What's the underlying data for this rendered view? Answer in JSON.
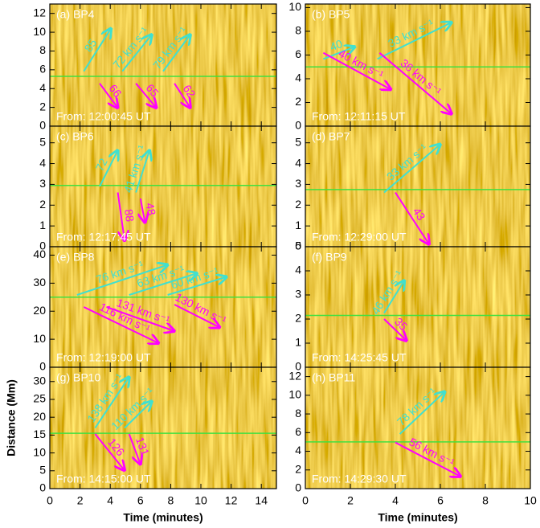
{
  "chart_data": [
    {
      "type": "time_distance",
      "title": "(a) BP4",
      "annotation": "From: 12:00:45 UT",
      "xlim": [
        0,
        15
      ],
      "xticks": [
        0,
        2,
        4,
        6,
        8,
        10,
        12,
        14
      ],
      "ylim": [
        0,
        13
      ],
      "yticks": [
        0,
        2,
        4,
        6,
        8,
        10,
        12
      ],
      "hline": 5.3,
      "hline_color": "#40e040",
      "velocities": [
        {
          "label": "85",
          "color": "#40e0d0"
        },
        {
          "label": "72 km s⁻¹",
          "color": "#40e0d0"
        },
        {
          "label": "79 km s⁻¹",
          "color": "#40e0d0"
        },
        {
          "label": "66",
          "color": "#ff00ff"
        },
        {
          "label": "65",
          "color": "#ff00ff"
        },
        {
          "label": "62",
          "color": "#ff00ff"
        }
      ]
    },
    {
      "type": "time_distance",
      "title": "(b) BP5",
      "annotation": "From: 12:11:15 UT",
      "xlim": [
        0,
        10
      ],
      "xticks": [
        0,
        2,
        4,
        6,
        8,
        10
      ],
      "ylim": [
        0,
        10.3
      ],
      "yticks": [
        0,
        2,
        4,
        6,
        8,
        10
      ],
      "hline": 5.0,
      "hline_color": "#40e040",
      "velocities": [
        {
          "label": "40",
          "color": "#40e0d0"
        },
        {
          "label": "33 km s⁻¹",
          "color": "#40e0d0"
        },
        {
          "label": "40 km s⁻¹",
          "color": "#ff00ff"
        },
        {
          "label": "36 km s⁻¹",
          "color": "#ff00ff"
        }
      ]
    },
    {
      "type": "time_distance",
      "title": "(c) BP6",
      "annotation": "From: 12:17:45 UT",
      "xlim": [
        0,
        15
      ],
      "xticks": [
        0,
        2,
        4,
        6,
        8,
        10,
        12,
        14
      ],
      "ylim": [
        0,
        5.8
      ],
      "yticks": [
        0,
        1,
        2,
        3,
        4,
        5
      ],
      "hline": 2.95,
      "hline_color": "#40e040",
      "velocities": [
        {
          "label": "72",
          "color": "#40e0d0"
        },
        {
          "label": "41 km s⁻¹",
          "color": "#40e0d0"
        },
        {
          "label": "88",
          "color": "#ff00ff"
        },
        {
          "label": "48",
          "color": "#ff00ff"
        }
      ]
    },
    {
      "type": "time_distance",
      "title": "(d) BP7",
      "annotation": "From: 12:29:00 UT",
      "xlim": [
        0,
        10
      ],
      "xticks": [
        0,
        2,
        4,
        6,
        8,
        10
      ],
      "ylim": [
        0,
        5.8
      ],
      "yticks": [
        0,
        1,
        2,
        3,
        4,
        5
      ],
      "hline": 2.75,
      "hline_color": "#40e040",
      "velocities": [
        {
          "label": "33 km s⁻¹",
          "color": "#40e0d0"
        },
        {
          "label": "43",
          "color": "#ff00ff"
        }
      ]
    },
    {
      "type": "time_distance",
      "title": "(e) BP8",
      "annotation": "From: 12:19:00 UT",
      "xlim": [
        0,
        15
      ],
      "xticks": [
        0,
        2,
        4,
        6,
        8,
        10,
        12,
        14
      ],
      "ylim": [
        0,
        43
      ],
      "yticks": [
        0,
        10,
        20,
        30,
        40
      ],
      "hline": 25,
      "hline_color": "#40e040",
      "velocities": [
        {
          "label": "76 km s⁻¹",
          "color": "#40e0d0"
        },
        {
          "label": "63 km s⁻¹",
          "color": "#40e0d0"
        },
        {
          "label": "60 km s⁻¹",
          "color": "#40e0d0"
        },
        {
          "label": "116 km s⁻¹",
          "color": "#ff00ff"
        },
        {
          "label": "131 km s⁻¹",
          "color": "#ff00ff"
        },
        {
          "label": "130 km s⁻¹",
          "color": "#ff00ff"
        }
      ]
    },
    {
      "type": "time_distance",
      "title": "(f) BP9",
      "annotation": "From: 14:25:45 UT",
      "xlim": [
        0,
        10
      ],
      "xticks": [
        0,
        2,
        4,
        6,
        8,
        10
      ],
      "ylim": [
        0,
        5
      ],
      "yticks": [
        0,
        1,
        2,
        3,
        4,
        5
      ],
      "hline": 2.15,
      "hline_color": "#40e040",
      "velocities": [
        {
          "label": "46 km s⁻¹",
          "color": "#40e0d0"
        },
        {
          "label": "35",
          "color": "#ff00ff"
        }
      ]
    },
    {
      "type": "time_distance",
      "title": "(g) BP10",
      "annotation": "From: 14:15:00 UT",
      "xlim": [
        0,
        15
      ],
      "xticks": [
        0,
        2,
        4,
        6,
        8,
        10,
        12,
        14
      ],
      "ylim": [
        0,
        34
      ],
      "yticks": [
        0,
        5,
        10,
        15,
        20,
        25,
        30
      ],
      "hline": 15.5,
      "hline_color": "#40e040",
      "xlabel": "Time (minutes)",
      "ylabel": "Distance (Mm)",
      "velocities": [
        {
          "label": "138 km s⁻¹",
          "color": "#40e0d0"
        },
        {
          "label": "110 km s⁻¹",
          "color": "#40e0d0"
        },
        {
          "label": "126",
          "color": "#ff00ff"
        },
        {
          "label": "131",
          "color": "#ff00ff"
        }
      ]
    },
    {
      "type": "time_distance",
      "title": "(h) BP11",
      "annotation": "From: 14:29:30 UT",
      "xlim": [
        0,
        10
      ],
      "xticks": [
        0,
        2,
        4,
        6,
        8,
        10
      ],
      "ylim": [
        0,
        13
      ],
      "yticks": [
        0,
        2,
        4,
        6,
        8,
        10,
        12
      ],
      "hline": 5.0,
      "hline_color": "#40e040",
      "xlabel": "Time (minutes)",
      "velocities": [
        {
          "label": "78 km s⁻¹",
          "color": "#40e0d0"
        },
        {
          "label": "56 km s⁻¹",
          "color": "#ff00ff"
        }
      ]
    }
  ]
}
